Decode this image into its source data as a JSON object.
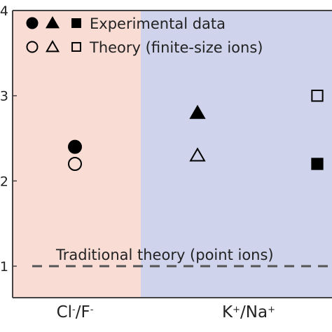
{
  "chart_data": {
    "type": "scatter",
    "categories": [
      "Cl-/F-",
      "K+/Na+"
    ],
    "ylim": [
      0.6,
      4.0
    ],
    "yticks": [
      1,
      2,
      3,
      4
    ],
    "ytick_labels": [
      "1",
      "2",
      "3",
      "4"
    ],
    "grid": false,
    "legend_position": "top-left",
    "region_colors": {
      "anion": "#f9ddd5",
      "cation": "#cfd4ec"
    },
    "legend": {
      "experimental_label": "Experimental data",
      "theory_label": "Theory (finite-size ions)"
    },
    "reference_line": {
      "label": "Traditional theory (point ions)",
      "value": 1.0,
      "style": "dashed",
      "color": "#555555"
    },
    "series": [
      {
        "name": "Experimental data",
        "points": [
          {
            "category": "Cl-/F-",
            "marker": "circle",
            "filled": true,
            "y": 2.4
          },
          {
            "category": "K+/Na+",
            "marker": "triangle",
            "filled": true,
            "y": 2.8
          },
          {
            "category": "K+/Na+",
            "marker": "square",
            "filled": true,
            "y": 2.2
          }
        ]
      },
      {
        "name": "Theory (finite-size ions)",
        "points": [
          {
            "category": "Cl-/F-",
            "marker": "circle",
            "filled": false,
            "y": 2.2
          },
          {
            "category": "K+/Na+",
            "marker": "triangle",
            "filled": false,
            "y": 2.3
          },
          {
            "category": "K+/Na+",
            "marker": "square",
            "filled": false,
            "y": 3.0
          }
        ]
      }
    ]
  }
}
